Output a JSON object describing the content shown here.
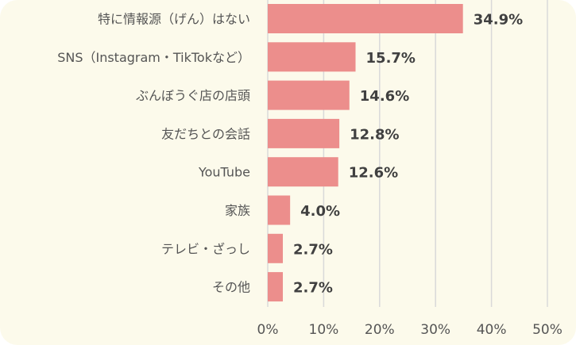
{
  "chart_data": {
    "type": "bar",
    "orientation": "horizontal",
    "categories": [
      "特に情報源（げん）はない",
      "SNS（Instagram・TikTokなど）",
      "ぶんぼうぐ店の店頭",
      "友だちとの会話",
      "YouTube",
      "家族",
      "テレビ・ざっし",
      "その他"
    ],
    "values": [
      34.9,
      15.7,
      14.6,
      12.8,
      12.6,
      4.0,
      2.7,
      2.7
    ],
    "data_labels": [
      "34.9%",
      "15.7%",
      "14.6%",
      "12.8%",
      "12.6%",
      "4.0%",
      "2.7%",
      "2.7%"
    ],
    "xlim": [
      0,
      50
    ],
    "x_ticks": [
      0,
      10,
      20,
      30,
      40,
      50
    ],
    "x_tick_labels": [
      "0%",
      "10%",
      "20%",
      "30%",
      "40%",
      "50%"
    ],
    "grid": true,
    "colors": {
      "bar": "#ec8e8c",
      "background": "#fcfaeb",
      "grid": "#d9d9d9"
    }
  }
}
